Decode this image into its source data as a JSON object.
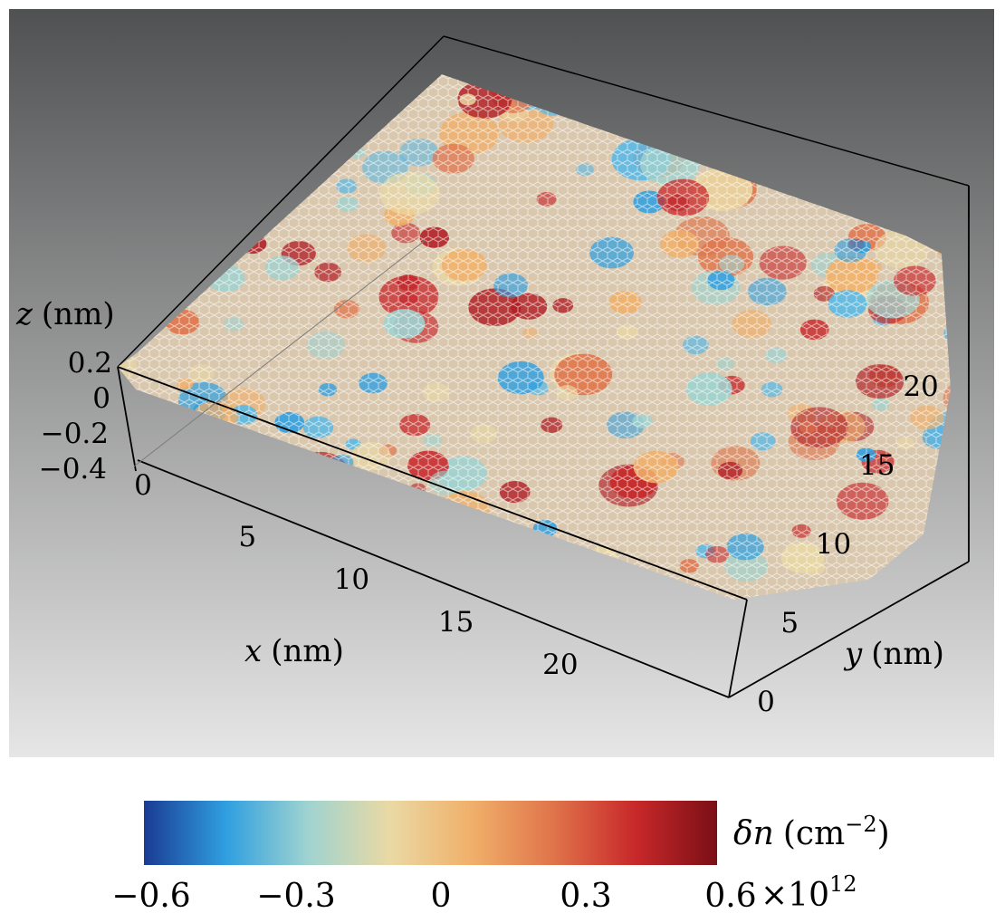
{
  "chart_data": {
    "type": "surface3d",
    "description_of_marks": "graphene lattice mesh surface colored by carrier density",
    "x_axis": {
      "label_var": "x",
      "label_unit": "(nm)",
      "ticks": [
        0,
        5,
        10,
        15,
        20
      ],
      "range": [
        0,
        23
      ]
    },
    "y_axis": {
      "label_var": "y",
      "label_unit": "(nm)",
      "ticks": [
        0,
        5,
        10,
        15,
        20
      ],
      "range": [
        0,
        23
      ]
    },
    "z_axis": {
      "label_var": "z",
      "label_unit": "(nm)",
      "ticks": [
        "0.2",
        "0",
        "−0.2",
        "−0.4"
      ],
      "range": [
        -0.4,
        0.2
      ]
    },
    "colorbar": {
      "label_var": "δn",
      "label_unit": "(cm",
      "label_exp": "−2",
      "label_close": ")",
      "ticks": [
        "−0.6",
        "−0.3",
        "0",
        "0.3",
        "0.6"
      ],
      "tick_values": [
        -0.6,
        -0.3,
        0,
        0.3,
        0.6
      ],
      "multiplier_base": "×10",
      "multiplier_exp": "12",
      "colors": [
        "#1a3b94",
        "#2f9fe0",
        "#9fd3d0",
        "#ead9a4",
        "#f0b06a",
        "#e0744a",
        "#c8282a",
        "#7a0f16"
      ]
    },
    "background_colors": [
      "#505152",
      "#e6e6e6"
    ]
  }
}
